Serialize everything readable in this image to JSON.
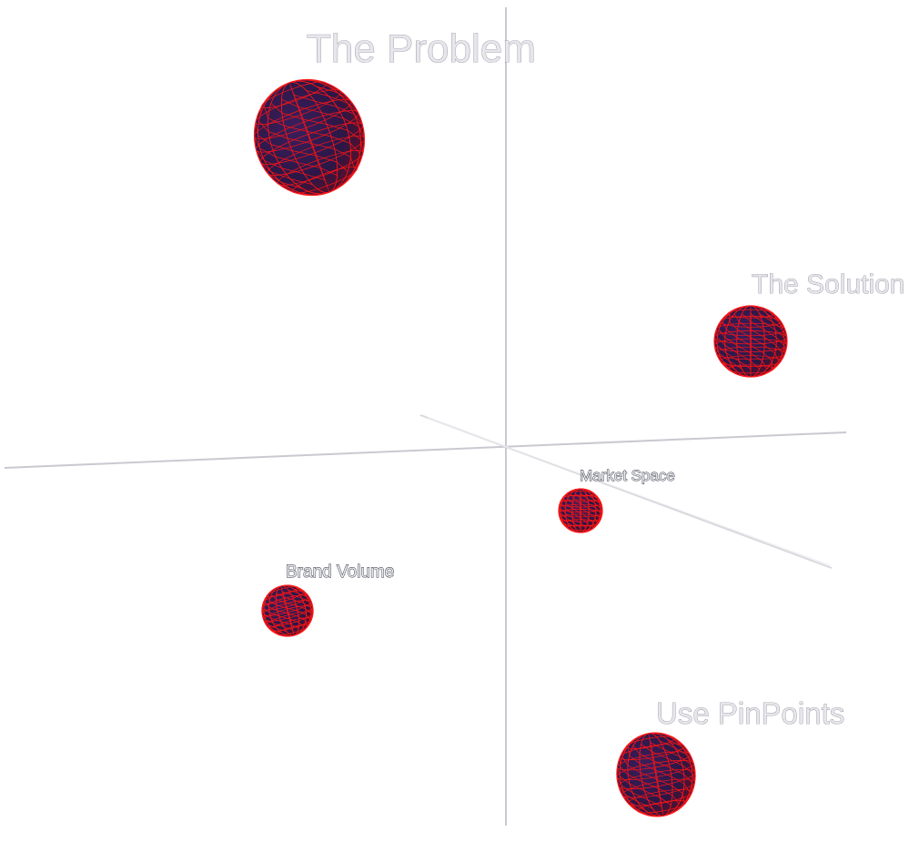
{
  "scene": {
    "background": "#ffffff",
    "axis_color": "#c9c9d1",
    "sphere_fill": "#2b1746",
    "sphere_mesh_color": "#ff1414"
  },
  "nodes": [
    {
      "id": "problem",
      "label": "The Problem"
    },
    {
      "id": "solution",
      "label": "The Solution"
    },
    {
      "id": "market",
      "label": "Market Space"
    },
    {
      "id": "brand",
      "label": "Brand Volume"
    },
    {
      "id": "pinpoints",
      "label": "Use PinPoints"
    }
  ]
}
